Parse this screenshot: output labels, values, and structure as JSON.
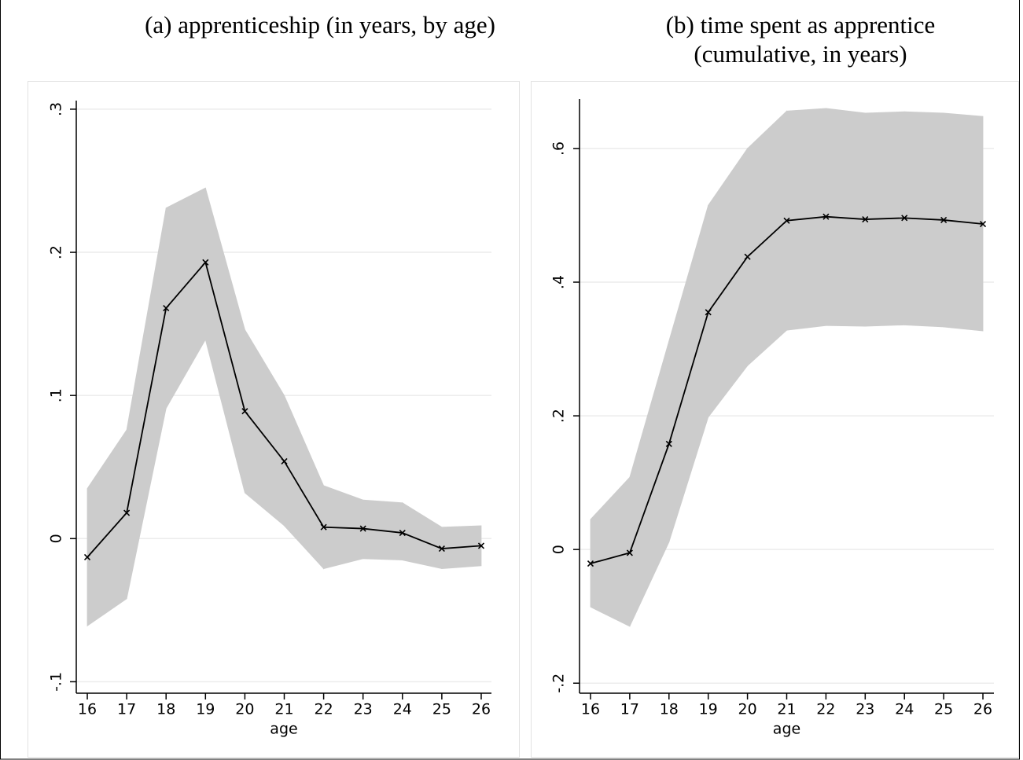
{
  "chart_data": [
    {
      "type": "line",
      "title": [
        "(a) apprenticeship (in years, by age)"
      ],
      "xlabel": "age",
      "x": [
        16,
        17,
        18,
        19,
        20,
        21,
        22,
        23,
        24,
        25,
        26
      ],
      "values": [
        -0.013,
        0.018,
        0.161,
        0.193,
        0.089,
        0.054,
        0.008,
        0.007,
        0.004,
        -0.007,
        -0.005
      ],
      "upper": [
        0.035,
        0.076,
        0.231,
        0.245,
        0.146,
        0.1,
        0.037,
        0.027,
        0.025,
        0.008,
        0.009
      ],
      "lower": [
        -0.061,
        -0.042,
        0.091,
        0.139,
        0.032,
        0.009,
        -0.021,
        -0.014,
        -0.015,
        -0.021,
        -0.019
      ],
      "color": "#000000",
      "band_color": "#cccccc",
      "xlim": [
        15.72,
        26.26
      ],
      "xticks": [
        16,
        17,
        18,
        19,
        20,
        21,
        22,
        23,
        24,
        25,
        26
      ],
      "ylim": [
        -0.108,
        0.306
      ],
      "yticks": [
        {
          "value": -0.1,
          "label": "-.1"
        },
        0,
        {
          "value": 0.1,
          "label": ".1"
        },
        {
          "value": 0.2,
          "label": ".2"
        },
        {
          "value": 0.3,
          "label": ".3"
        }
      ],
      "grid": true
    },
    {
      "type": "line",
      "title": [
        "(b) time spent as apprentice",
        "(cumulative, in years)"
      ],
      "xlabel": "age",
      "x": [
        16,
        17,
        18,
        19,
        20,
        21,
        22,
        23,
        24,
        25,
        26
      ],
      "values": [
        -0.021,
        -0.005,
        0.158,
        0.355,
        0.438,
        0.492,
        0.498,
        0.494,
        0.496,
        0.493,
        0.487
      ],
      "upper": [
        0.045,
        0.108,
        0.312,
        0.515,
        0.6,
        0.656,
        0.66,
        0.653,
        0.655,
        0.653,
        0.648
      ],
      "lower": [
        -0.086,
        -0.115,
        0.011,
        0.198,
        0.275,
        0.328,
        0.335,
        0.334,
        0.336,
        0.333,
        0.327
      ],
      "color": "#000000",
      "band_color": "#cccccc",
      "xlim": [
        15.72,
        26.28
      ],
      "xticks": [
        16,
        17,
        18,
        19,
        20,
        21,
        22,
        23,
        24,
        25,
        26
      ],
      "ylim": [
        -0.215,
        0.674
      ],
      "yticks": [
        {
          "value": -0.2,
          "label": "-.2"
        },
        0,
        {
          "value": 0.2,
          "label": ".2"
        },
        {
          "value": 0.4,
          "label": ".4"
        },
        {
          "value": 0.6,
          "label": ".6"
        }
      ],
      "grid": true
    }
  ]
}
